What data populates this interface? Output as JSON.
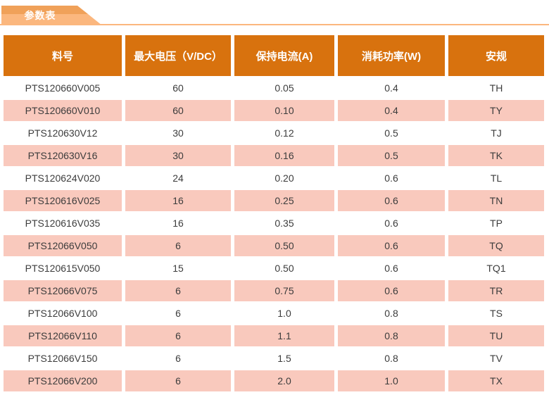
{
  "banner": {
    "title": "参数表"
  },
  "colors": {
    "header_bg": "#D8720E",
    "row_alt_bg": "#F9C9BD",
    "tab_dark": "#F0A159",
    "tab_light": "#FBB77E",
    "body_text": "#3C3C3C",
    "header_text": "#FFFFFF"
  },
  "table": {
    "columns": [
      {
        "key": "part",
        "label": "料号"
      },
      {
        "key": "voltage",
        "label": "最大电压（V/DC）"
      },
      {
        "key": "current",
        "label": "保持电流(A)"
      },
      {
        "key": "power",
        "label": "消耗功率(W)"
      },
      {
        "key": "cert",
        "label": "安规"
      }
    ],
    "rows": [
      {
        "part": "PTS120660V005",
        "voltage": "60",
        "current": "0.05",
        "power": "0.4",
        "cert": "TH"
      },
      {
        "part": "PTS120660V010",
        "voltage": "60",
        "current": "0.10",
        "power": "0.4",
        "cert": "TY"
      },
      {
        "part": "PTS120630V12",
        "voltage": "30",
        "current": "0.12",
        "power": "0.5",
        "cert": "TJ"
      },
      {
        "part": "PTS120630V16",
        "voltage": "30",
        "current": "0.16",
        "power": "0.5",
        "cert": "TK"
      },
      {
        "part": "PTS120624V020",
        "voltage": "24",
        "current": "0.20",
        "power": "0.6",
        "cert": "TL"
      },
      {
        "part": "PTS120616V025",
        "voltage": "16",
        "current": "0.25",
        "power": "0.6",
        "cert": "TN"
      },
      {
        "part": "PTS120616V035",
        "voltage": "16",
        "current": "0.35",
        "power": "0.6",
        "cert": "TP"
      },
      {
        "part": "PTS12066V050",
        "voltage": "6",
        "current": "0.50",
        "power": "0.6",
        "cert": "TQ"
      },
      {
        "part": "PTS120615V050",
        "voltage": "15",
        "current": "0.50",
        "power": "0.6",
        "cert": "TQ1"
      },
      {
        "part": "PTS12066V075",
        "voltage": "6",
        "current": "0.75",
        "power": "0.6",
        "cert": "TR"
      },
      {
        "part": "PTS12066V100",
        "voltage": "6",
        "current": "1.0",
        "power": "0.8",
        "cert": "TS"
      },
      {
        "part": "PTS12066V110",
        "voltage": "6",
        "current": "1.1",
        "power": "0.8",
        "cert": "TU"
      },
      {
        "part": "PTS12066V150",
        "voltage": "6",
        "current": "1.5",
        "power": "0.8",
        "cert": "TV"
      },
      {
        "part": "PTS12066V200",
        "voltage": "6",
        "current": "2.0",
        "power": "1.0",
        "cert": "TX"
      }
    ]
  }
}
